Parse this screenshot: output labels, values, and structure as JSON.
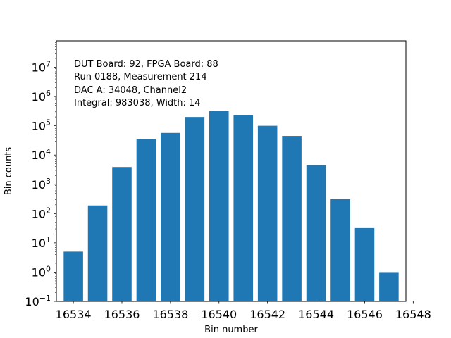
{
  "chart_data": {
    "type": "bar",
    "x": [
      16534,
      16535,
      16536,
      16537,
      16538,
      16539,
      16540,
      16541,
      16542,
      16543,
      16544,
      16545,
      16546,
      16547
    ],
    "values": [
      5,
      190,
      3900,
      36000,
      57000,
      200000,
      320000,
      230000,
      100000,
      45000,
      4500,
      310,
      32,
      1
    ],
    "xlabel": "Bin number",
    "ylabel": "Bin counts",
    "yscale": "log",
    "xlim": [
      16533.3,
      16547.7
    ],
    "ylim": [
      0.1,
      80000000
    ],
    "x_ticks": [
      16534,
      16536,
      16538,
      16540,
      16542,
      16544,
      16546,
      16548
    ],
    "y_tick_exponents": [
      -1,
      0,
      1,
      2,
      3,
      4,
      5,
      6,
      7
    ],
    "bar_color": "#1f77b4",
    "annotations": [
      "DUT Board: 92, FPGA Board: 88",
      "Run 0188, Measurement 214",
      "DAC A: 34048, Channel2",
      "Integral: 983038, Width: 14"
    ]
  }
}
